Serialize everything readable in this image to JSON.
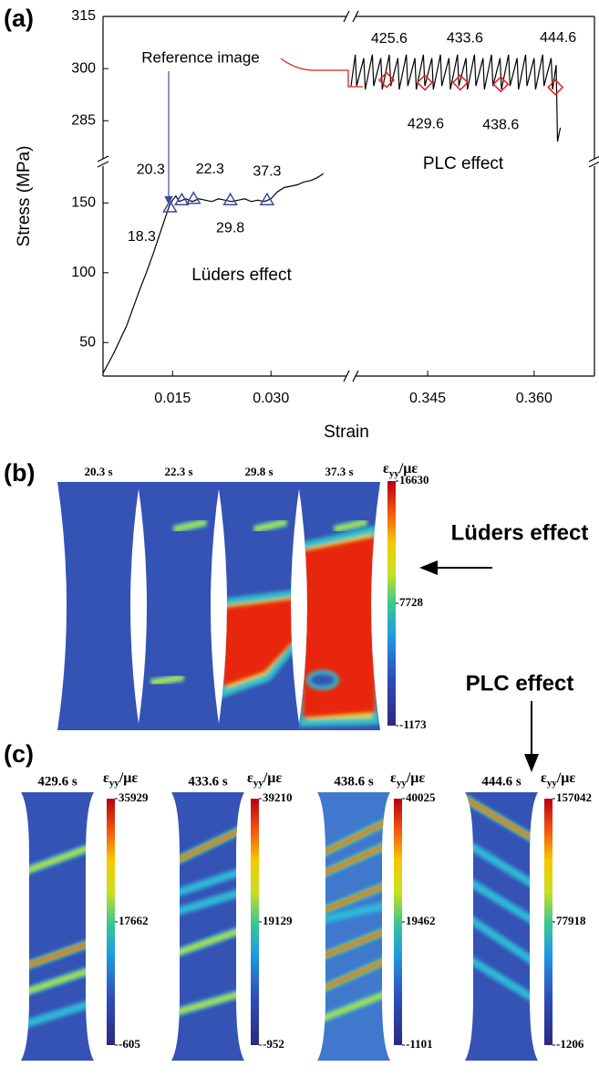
{
  "chart_data": [
    {
      "type": "line",
      "panel_label": "(a)",
      "ylabel": "Stress (MPa)",
      "xlabel": "Strain",
      "xlim": [
        0.0044,
        0.0422
      ],
      "ylim": [
        26,
        179
      ],
      "xticks": [
        0.015,
        {
          "value": 0.03,
          "label": "0.030"
        }
      ],
      "yticks": [
        50,
        100,
        150
      ],
      "series": [
        {
          "color": "#000000",
          "x": [
            0.0044,
            0.006,
            0.008,
            0.01,
            0.011,
            0.012,
            0.013,
            0.014,
            0.0145,
            0.015,
            0.0155,
            0.016,
            0.017,
            0.018,
            0.019,
            0.02,
            0.021,
            0.022,
            0.023,
            0.024,
            0.025,
            0.026,
            0.027,
            0.028,
            0.029,
            0.0295,
            0.03,
            0.031,
            0.032,
            0.033,
            0.034,
            0.035,
            0.036,
            0.037,
            0.038
          ],
          "values": [
            28,
            42,
            62,
            88,
            100,
            113,
            127,
            141,
            148,
            152,
            155,
            151,
            153,
            151,
            153,
            152,
            151,
            153,
            152,
            151,
            152,
            153,
            151,
            152,
            151,
            152,
            153,
            158,
            161,
            162,
            163,
            165,
            166,
            168,
            171
          ]
        },
        {
          "color": "#3b4ba0",
          "marker": "triangle",
          "x": [
            0.0146,
            0.0164,
            0.0182,
            0.0238,
            0.0294
          ],
          "values": [
            147,
            152,
            153,
            152,
            152
          ],
          "point_labels": [
            "18.3",
            "20.3",
            "22.3",
            "29.8",
            "37.3"
          ]
        }
      ],
      "annotations": [
        "Reference image",
        "Lüders effect"
      ]
    },
    {
      "type": "line",
      "xlim": [
        0.3342,
        0.3685
      ],
      "ylim": [
        273,
        315
      ],
      "xticks": [
        0.345,
        {
          "value": 0.36,
          "label": "0.360"
        }
      ],
      "yticks": [
        285,
        300,
        315
      ],
      "series": [
        {
          "color": "#000000",
          "x": [
            0.3342,
            0.3348,
            0.335,
            0.336,
            0.3362,
            0.3372,
            0.3374,
            0.3384,
            0.3386,
            0.3396,
            0.3398,
            0.3408,
            0.341,
            0.342,
            0.3422,
            0.3432,
            0.3434,
            0.3444,
            0.3446,
            0.3456,
            0.3458,
            0.3468,
            0.347,
            0.348,
            0.3482,
            0.3492,
            0.3494,
            0.3504,
            0.3506,
            0.3516,
            0.3518,
            0.3528,
            0.353,
            0.354,
            0.3542,
            0.3552,
            0.3554,
            0.3564,
            0.3566,
            0.3576,
            0.3578,
            0.3588,
            0.359,
            0.36,
            0.3602,
            0.3612,
            0.3614,
            0.3624,
            0.3626,
            0.3631,
            0.3633,
            0.3637
          ],
          "values": [
            295,
            304,
            295,
            303,
            294,
            304,
            295,
            303,
            294,
            304,
            295,
            303,
            294,
            304,
            295,
            303,
            294,
            304,
            295,
            303,
            294,
            304,
            295,
            303,
            294,
            304,
            295,
            303,
            294,
            304,
            295,
            303,
            294,
            304,
            295,
            303,
            294,
            304,
            295,
            303,
            294,
            304,
            295,
            303,
            294,
            304,
            295,
            303,
            294,
            301,
            279,
            283
          ]
        },
        {
          "color": "#e02020",
          "marker": "diamond",
          "x": [
            0.3392,
            0.3446,
            0.3496,
            0.3553,
            0.363
          ],
          "values": [
            296.7,
            296,
            296,
            295.5,
            294.6
          ],
          "point_labels": [
            "425.6",
            "429.6",
            "433.6",
            "438.6",
            "444.6"
          ]
        }
      ],
      "annotations": [
        "PLC effect"
      ]
    }
  ],
  "panel_b": {
    "label": "(b)",
    "times": [
      "20.3 s",
      "22.3 s",
      "29.8 s",
      "37.3 s"
    ],
    "colorbar_title": {
      "symbol": "ε",
      "subscript": "yy",
      "unit": "/με"
    },
    "colorbar_ticks": [
      16630,
      7728,
      -1173
    ],
    "annotations": [
      "Lüders effect",
      "PLC effect"
    ]
  },
  "panel_c": {
    "label": "(c)",
    "colorbar_title": {
      "symbol": "ε",
      "subscript": "yy",
      "unit": "/με"
    },
    "specimens": [
      {
        "time": "429.6 s",
        "colorbar_ticks": [
          35929,
          17662,
          -605
        ]
      },
      {
        "time": "433.6 s",
        "colorbar_ticks": [
          39210,
          19129,
          -952
        ]
      },
      {
        "time": "438.6 s",
        "colorbar_ticks": [
          40025,
          19462,
          -1101
        ]
      },
      {
        "time": "444.6 s",
        "colorbar_ticks": [
          157042,
          77918,
          -1206
        ]
      }
    ]
  }
}
